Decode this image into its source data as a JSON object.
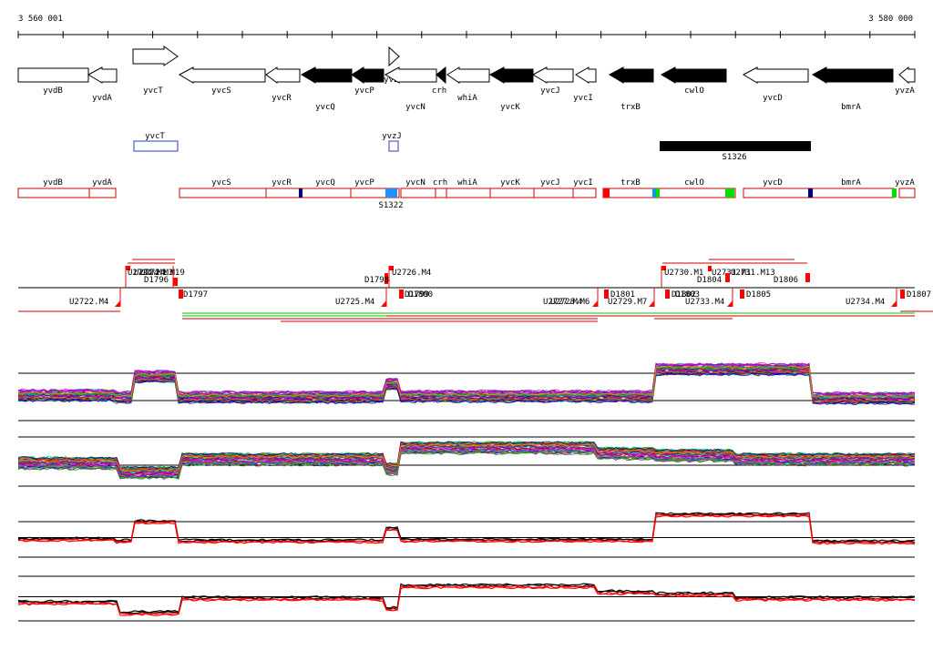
{
  "axis": {
    "start_label": "3 560 001",
    "end_label": "3 580 000"
  },
  "genes": [
    {
      "label": "yvdB",
      "dir": "left",
      "filled": false,
      "strand": "lower"
    },
    {
      "label": "yvdA",
      "dir": "left",
      "filled": false,
      "strand": "lower"
    },
    {
      "label": "yvcT",
      "dir": "right",
      "filled": false,
      "strand": "upper"
    },
    {
      "label": "yvcS",
      "dir": "left",
      "filled": false,
      "strand": "lower"
    },
    {
      "label": "yvcR",
      "dir": "left",
      "filled": false,
      "strand": "lower"
    },
    {
      "label": "yvcQ",
      "dir": "left",
      "filled": true,
      "strand": "lower"
    },
    {
      "label": "yvcP",
      "dir": "left",
      "filled": true,
      "strand": "lower"
    },
    {
      "label": "yvzJ",
      "dir": "right",
      "filled": false,
      "strand": "upper"
    },
    {
      "label": "yvcN",
      "dir": "left",
      "filled": false,
      "strand": "lower"
    },
    {
      "label": "crh",
      "dir": "left",
      "filled": true,
      "strand": "lower"
    },
    {
      "label": "whiA",
      "dir": "left",
      "filled": false,
      "strand": "lower"
    },
    {
      "label": "yvcK",
      "dir": "left",
      "filled": true,
      "strand": "lower"
    },
    {
      "label": "yvcJ",
      "dir": "left",
      "filled": false,
      "strand": "lower"
    },
    {
      "label": "yvcI",
      "dir": "left",
      "filled": false,
      "strand": "lower"
    },
    {
      "label": "trxB",
      "dir": "left",
      "filled": true,
      "strand": "lower"
    },
    {
      "label": "cwlO",
      "dir": "left",
      "filled": true,
      "strand": "lower"
    },
    {
      "label": "yvcD",
      "dir": "left",
      "filled": false,
      "strand": "lower"
    },
    {
      "label": "bmrA",
      "dir": "left",
      "filled": true,
      "strand": "lower"
    },
    {
      "label": "yvzA",
      "dir": "left",
      "filled": false,
      "strand": "lower"
    }
  ],
  "features": [
    {
      "label": "yvcT",
      "style": "blue-outline"
    },
    {
      "label": "yvzJ",
      "style": "blue-outline"
    },
    {
      "label": "S1326",
      "style": "black-fill"
    }
  ],
  "segments": [
    {
      "label": "yvdB"
    },
    {
      "label": "yvdA"
    },
    {
      "label": "yvcS"
    },
    {
      "label": "yvcR"
    },
    {
      "label": "yvcQ"
    },
    {
      "label": "yvcP"
    },
    {
      "label": "yvcN"
    },
    {
      "label": "crh"
    },
    {
      "label": "whiA"
    },
    {
      "label": "yvcK"
    },
    {
      "label": "yvcJ"
    },
    {
      "label": "yvcI"
    },
    {
      "label": "trxB"
    },
    {
      "label": "cwlO"
    },
    {
      "label": "yvcD"
    },
    {
      "label": "bmrA"
    },
    {
      "label": "yvzA"
    }
  ],
  "segment_markers": [
    {
      "label": "S1322",
      "color": "#1e90ff"
    }
  ],
  "transcripts_upper": [
    {
      "label": "U2724.M1"
    },
    {
      "label": "U2724.M3"
    },
    {
      "label": "U2724.M19"
    },
    {
      "label": "D1796"
    },
    {
      "label": "D1798"
    },
    {
      "label": "U2726.M4"
    },
    {
      "label": "U2730.M1"
    },
    {
      "label": "U2731.M1"
    },
    {
      "label": "U2731.M13"
    },
    {
      "label": "D1804"
    },
    {
      "label": "D1806"
    }
  ],
  "transcripts_lower": [
    {
      "label": "U2722.M4"
    },
    {
      "label": "D1797"
    },
    {
      "label": "U2725.M4"
    },
    {
      "label": "D1799"
    },
    {
      "label": "D1800"
    },
    {
      "label": "U2727.M4"
    },
    {
      "label": "U2728.M6"
    },
    {
      "label": "D1801"
    },
    {
      "label": "U2729.M7"
    },
    {
      "label": "D1802"
    },
    {
      "label": "D1803"
    },
    {
      "label": "U2733.M4"
    },
    {
      "label": "D1805"
    },
    {
      "label": "U2734.M4"
    },
    {
      "label": "D1807"
    }
  ],
  "colors": {
    "arrow_filled": "#000000",
    "segment_outline": "#cc0000",
    "promoter": "#ff0000",
    "blue_feature": "#1f3fbf",
    "green_mark": "#00e000",
    "cyan_mark": "#00a0e0",
    "navy_mark": "#000080"
  },
  "icons": {
    "transcript_start": "red-flag-icon",
    "promoter": "red-triangle-icon"
  },
  "tracks": [
    {
      "name": "expression-multi-condition-1",
      "style": "multicolor"
    },
    {
      "name": "expression-multi-condition-2",
      "style": "multicolor"
    },
    {
      "name": "expression-summary-1",
      "style": "red-black"
    },
    {
      "name": "expression-summary-2",
      "style": "red-black"
    }
  ]
}
